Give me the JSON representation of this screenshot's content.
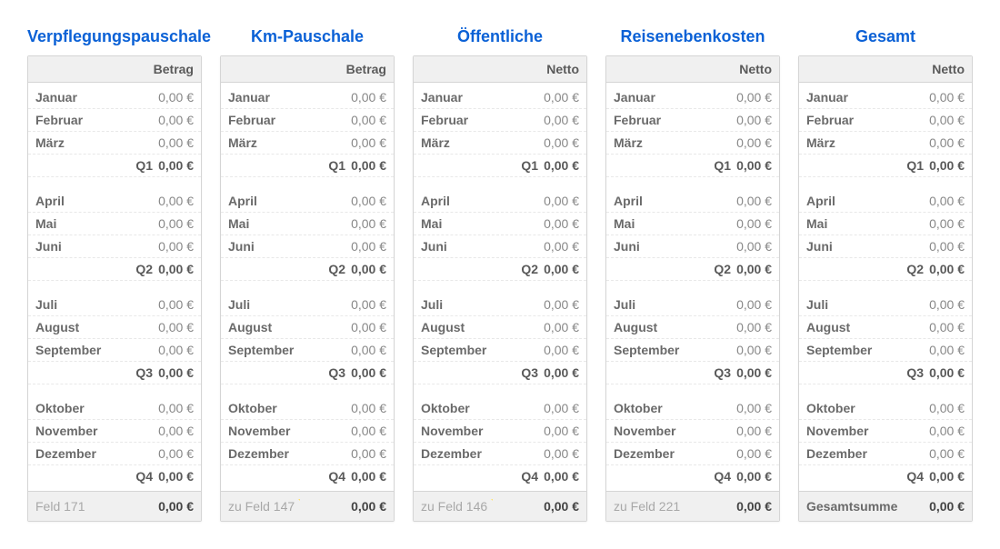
{
  "panels": [
    {
      "title": "Verpflegungspauschale",
      "header": "Betrag",
      "footer_label": "Feld 171",
      "footer_value": "0,00 €",
      "footer_marked": false,
      "rows": [
        {
          "label": "Januar",
          "value": "0,00 €",
          "type": "month"
        },
        {
          "label": "Februar",
          "value": "0,00 €",
          "type": "month"
        },
        {
          "label": "März",
          "value": "0,00 €",
          "type": "month"
        },
        {
          "label": "Q1",
          "value": "0,00 €",
          "type": "subtotal"
        },
        {
          "type": "spacer"
        },
        {
          "label": "April",
          "value": "0,00 €",
          "type": "month"
        },
        {
          "label": "Mai",
          "value": "0,00 €",
          "type": "month"
        },
        {
          "label": "Juni",
          "value": "0,00 €",
          "type": "month"
        },
        {
          "label": "Q2",
          "value": "0,00 €",
          "type": "subtotal"
        },
        {
          "type": "spacer"
        },
        {
          "label": "Juli",
          "value": "0,00 €",
          "type": "month"
        },
        {
          "label": "August",
          "value": "0,00 €",
          "type": "month"
        },
        {
          "label": "September",
          "value": "0,00 €",
          "type": "month"
        },
        {
          "label": "Q3",
          "value": "0,00 €",
          "type": "subtotal"
        },
        {
          "type": "spacer"
        },
        {
          "label": "Oktober",
          "value": "0,00 €",
          "type": "month"
        },
        {
          "label": "November",
          "value": "0,00 €",
          "type": "month"
        },
        {
          "label": "Dezember",
          "value": "0,00 €",
          "type": "month"
        },
        {
          "label": "Q4",
          "value": "0,00 €",
          "type": "subtotal"
        }
      ]
    },
    {
      "title": "Km-Pauschale",
      "header": "Betrag",
      "footer_label": "zu Feld 147",
      "footer_value": "0,00 €",
      "footer_marked": true,
      "rows": [
        {
          "label": "Januar",
          "value": "0,00 €",
          "type": "month"
        },
        {
          "label": "Februar",
          "value": "0,00 €",
          "type": "month"
        },
        {
          "label": "März",
          "value": "0,00 €",
          "type": "month"
        },
        {
          "label": "Q1",
          "value": "0,00 €",
          "type": "subtotal"
        },
        {
          "type": "spacer"
        },
        {
          "label": "April",
          "value": "0,00 €",
          "type": "month"
        },
        {
          "label": "Mai",
          "value": "0,00 €",
          "type": "month"
        },
        {
          "label": "Juni",
          "value": "0,00 €",
          "type": "month"
        },
        {
          "label": "Q2",
          "value": "0,00 €",
          "type": "subtotal"
        },
        {
          "type": "spacer"
        },
        {
          "label": "Juli",
          "value": "0,00 €",
          "type": "month"
        },
        {
          "label": "August",
          "value": "0,00 €",
          "type": "month"
        },
        {
          "label": "September",
          "value": "0,00 €",
          "type": "month"
        },
        {
          "label": "Q3",
          "value": "0,00 €",
          "type": "subtotal"
        },
        {
          "type": "spacer"
        },
        {
          "label": "Oktober",
          "value": "0,00 €",
          "type": "month"
        },
        {
          "label": "November",
          "value": "0,00 €",
          "type": "month"
        },
        {
          "label": "Dezember",
          "value": "0,00 €",
          "type": "month"
        },
        {
          "label": "Q4",
          "value": "0,00 €",
          "type": "subtotal"
        }
      ]
    },
    {
      "title": "Öffentliche",
      "header": "Netto",
      "footer_label": "zu Feld 146",
      "footer_value": "0,00 €",
      "footer_marked": true,
      "rows": [
        {
          "label": "Januar",
          "value": "0,00 €",
          "type": "month"
        },
        {
          "label": "Februar",
          "value": "0,00 €",
          "type": "month"
        },
        {
          "label": "März",
          "value": "0,00 €",
          "type": "month"
        },
        {
          "label": "Q1",
          "value": "0,00 €",
          "type": "subtotal"
        },
        {
          "type": "spacer"
        },
        {
          "label": "April",
          "value": "0,00 €",
          "type": "month"
        },
        {
          "label": "Mai",
          "value": "0,00 €",
          "type": "month"
        },
        {
          "label": "Juni",
          "value": "0,00 €",
          "type": "month"
        },
        {
          "label": "Q2",
          "value": "0,00 €",
          "type": "subtotal"
        },
        {
          "type": "spacer"
        },
        {
          "label": "Juli",
          "value": "0,00 €",
          "type": "month"
        },
        {
          "label": "August",
          "value": "0,00 €",
          "type": "month"
        },
        {
          "label": "September",
          "value": "0,00 €",
          "type": "month"
        },
        {
          "label": "Q3",
          "value": "0,00 €",
          "type": "subtotal"
        },
        {
          "type": "spacer"
        },
        {
          "label": "Oktober",
          "value": "0,00 €",
          "type": "month"
        },
        {
          "label": "November",
          "value": "0,00 €",
          "type": "month"
        },
        {
          "label": "Dezember",
          "value": "0,00 €",
          "type": "month"
        },
        {
          "label": "Q4",
          "value": "0,00 €",
          "type": "subtotal"
        }
      ]
    },
    {
      "title": "Reisenebenkosten",
      "header": "Netto",
      "footer_label": "zu Feld 221",
      "footer_value": "0,00 €",
      "footer_marked": false,
      "rows": [
        {
          "label": "Januar",
          "value": "0,00 €",
          "type": "month"
        },
        {
          "label": "Februar",
          "value": "0,00 €",
          "type": "month"
        },
        {
          "label": "März",
          "value": "0,00 €",
          "type": "month"
        },
        {
          "label": "Q1",
          "value": "0,00 €",
          "type": "subtotal"
        },
        {
          "type": "spacer"
        },
        {
          "label": "April",
          "value": "0,00 €",
          "type": "month"
        },
        {
          "label": "Mai",
          "value": "0,00 €",
          "type": "month"
        },
        {
          "label": "Juni",
          "value": "0,00 €",
          "type": "month"
        },
        {
          "label": "Q2",
          "value": "0,00 €",
          "type": "subtotal"
        },
        {
          "type": "spacer"
        },
        {
          "label": "Juli",
          "value": "0,00 €",
          "type": "month"
        },
        {
          "label": "August",
          "value": "0,00 €",
          "type": "month"
        },
        {
          "label": "September",
          "value": "0,00 €",
          "type": "month"
        },
        {
          "label": "Q3",
          "value": "0,00 €",
          "type": "subtotal"
        },
        {
          "type": "spacer"
        },
        {
          "label": "Oktober",
          "value": "0,00 €",
          "type": "month"
        },
        {
          "label": "November",
          "value": "0,00 €",
          "type": "month"
        },
        {
          "label": "Dezember",
          "value": "0,00 €",
          "type": "month"
        },
        {
          "label": "Q4",
          "value": "0,00 €",
          "type": "subtotal"
        }
      ]
    },
    {
      "title": "Gesamt",
      "header": "Netto",
      "footer_label": "Gesamtsumme",
      "footer_value": "0,00 €",
      "footer_marked": false,
      "footer_label_strong": true,
      "rows": [
        {
          "label": "Januar",
          "value": "0,00 €",
          "type": "month"
        },
        {
          "label": "Februar",
          "value": "0,00 €",
          "type": "month"
        },
        {
          "label": "März",
          "value": "0,00 €",
          "type": "month"
        },
        {
          "label": "Q1",
          "value": "0,00 €",
          "type": "subtotal"
        },
        {
          "type": "spacer"
        },
        {
          "label": "April",
          "value": "0,00 €",
          "type": "month"
        },
        {
          "label": "Mai",
          "value": "0,00 €",
          "type": "month"
        },
        {
          "label": "Juni",
          "value": "0,00 €",
          "type": "month"
        },
        {
          "label": "Q2",
          "value": "0,00 €",
          "type": "subtotal"
        },
        {
          "type": "spacer"
        },
        {
          "label": "Juli",
          "value": "0,00 €",
          "type": "month"
        },
        {
          "label": "August",
          "value": "0,00 €",
          "type": "month"
        },
        {
          "label": "September",
          "value": "0,00 €",
          "type": "month"
        },
        {
          "label": "Q3",
          "value": "0,00 €",
          "type": "subtotal"
        },
        {
          "type": "spacer"
        },
        {
          "label": "Oktober",
          "value": "0,00 €",
          "type": "month"
        },
        {
          "label": "November",
          "value": "0,00 €",
          "type": "month"
        },
        {
          "label": "Dezember",
          "value": "0,00 €",
          "type": "month"
        },
        {
          "label": "Q4",
          "value": "0,00 €",
          "type": "subtotal"
        }
      ]
    }
  ]
}
